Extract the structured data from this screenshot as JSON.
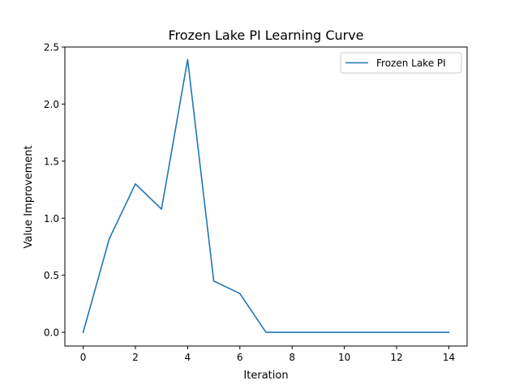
{
  "chart_data": {
    "type": "line",
    "title": "Frozen Lake PI Learning Curve",
    "xlabel": "Iteration",
    "ylabel": "Value Improvement",
    "x": [
      0,
      1,
      2,
      3,
      4,
      5,
      6,
      7,
      8,
      9,
      10,
      11,
      12,
      13,
      14
    ],
    "series": [
      {
        "name": "Frozen Lake PI",
        "color": "#1f77b4",
        "values": [
          0.0,
          0.82,
          1.3,
          1.08,
          2.39,
          0.45,
          0.34,
          0.0,
          0.0,
          0.0,
          0.0,
          0.0,
          0.0,
          0.0,
          0.0
        ]
      }
    ],
    "xlim": [
      -0.7,
      14.7
    ],
    "ylim": [
      -0.12,
      2.5
    ],
    "xticks": [
      "0",
      "2",
      "4",
      "6",
      "8",
      "10",
      "12",
      "14"
    ],
    "yticks": [
      "0.0",
      "0.5",
      "1.0",
      "1.5",
      "2.0",
      "2.5"
    ],
    "grid": false,
    "legend_position": "top-right"
  }
}
